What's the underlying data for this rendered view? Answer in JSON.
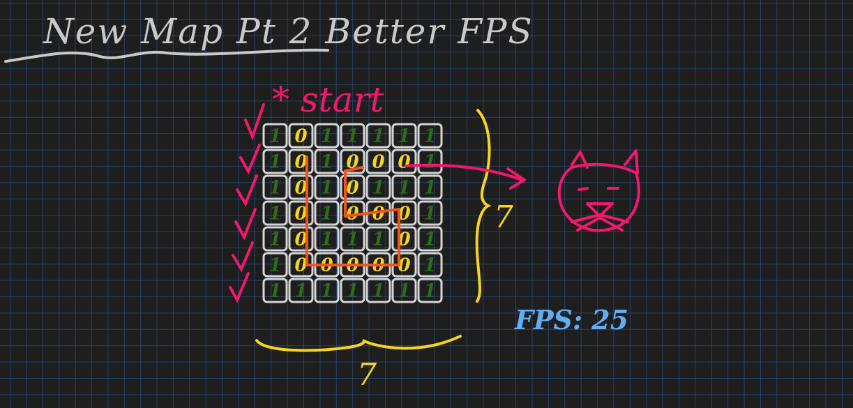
{
  "title": "New Map Pt 2  Better FPS",
  "start_label": "* start",
  "width_label": "7",
  "height_label": "7",
  "fps_label": "FPS: 25",
  "colors": {
    "background": "#1f1e1e",
    "grid": "#284e80",
    "title": "#c9c9c9",
    "start": "#f0196e",
    "dimension": "#f7d51d",
    "wall": "#2e6b1c",
    "path": "#f7d51d",
    "route": "#f2541b",
    "fps": "#62aef5",
    "cat": "#f0196e"
  },
  "icons": [
    "cat-icon",
    "arrow-icon"
  ],
  "map": [
    [
      "1",
      "0",
      "1",
      "1",
      "1",
      "1",
      "1"
    ],
    [
      "1",
      "0",
      "1",
      "0",
      "0",
      "0",
      "1"
    ],
    [
      "1",
      "0",
      "1",
      "0",
      "1",
      "1",
      "1"
    ],
    [
      "1",
      "0",
      "1",
      "0",
      "0",
      "0",
      "1"
    ],
    [
      "1",
      "0",
      "1",
      "1",
      "1",
      "0",
      "1"
    ],
    [
      "1",
      "0",
      "0",
      "0",
      "0",
      "0",
      "1"
    ],
    [
      "1",
      "1",
      "1",
      "1",
      "1",
      "1",
      "1"
    ]
  ]
}
